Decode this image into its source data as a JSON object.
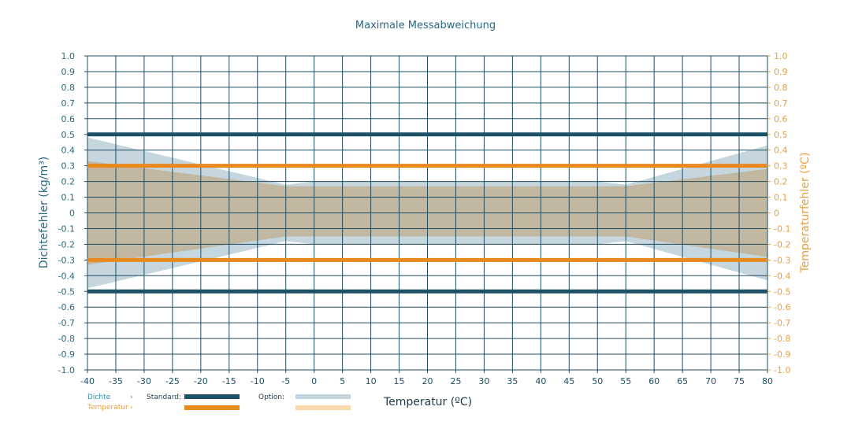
{
  "chart_data": {
    "type": "area",
    "title": "Maximale Messabweichung",
    "xlabel": "Temperatur (ºC)",
    "ylabel_left": "Dichtefehler (kg/m³)",
    "ylabel_right": "Temperaturfehler (ºC)",
    "xlim": [
      -40,
      80
    ],
    "ylim": [
      -1.0,
      1.0
    ],
    "x_ticks": [
      -40,
      -35,
      -30,
      -25,
      -20,
      -15,
      -10,
      -5,
      0,
      5,
      10,
      15,
      20,
      25,
      30,
      35,
      40,
      45,
      50,
      55,
      60,
      65,
      70,
      75,
      80
    ],
    "y_ticks": [
      1.0,
      0.9,
      0.8,
      0.7,
      0.6,
      0.5,
      0.4,
      0.3,
      0.2,
      0.1,
      0,
      -0.1,
      -0.2,
      -0.3,
      -0.4,
      -0.5,
      -0.6,
      -0.7,
      -0.8,
      -0.9,
      -1.0
    ],
    "y_tick_labels": [
      "1.0",
      "0.9",
      "0.8",
      "0.7",
      "0.6",
      "0.5",
      "0.4",
      "0.3",
      "0.2",
      "0.1",
      "0",
      "-0.1",
      "-0.2",
      "-0.3",
      "-0.4",
      "-0.5",
      "-0.6",
      "-0.7",
      "-0.8",
      "-0.9",
      "-1.0"
    ],
    "grid": true,
    "series": [
      {
        "name": "Dichte Standard",
        "kind": "line",
        "color": "#1d5166",
        "values": [
          0.5,
          -0.5
        ]
      },
      {
        "name": "Temperatur Standard",
        "kind": "line",
        "color": "#e8891d",
        "values": [
          0.3,
          -0.3
        ]
      },
      {
        "name": "Dichte Option",
        "kind": "band",
        "color": "#c5d6de",
        "x": [
          -40,
          -5,
          0,
          50,
          55,
          80
        ],
        "upper": [
          0.48,
          0.18,
          0.2,
          0.2,
          0.18,
          0.43
        ],
        "lower": [
          -0.48,
          -0.18,
          -0.2,
          -0.2,
          -0.18,
          -0.43
        ]
      },
      {
        "name": "Temperatur Option",
        "kind": "band",
        "color": "#c2b7a0",
        "x": [
          -40,
          -5,
          55,
          80
        ],
        "upper": [
          0.33,
          0.17,
          0.17,
          0.28
        ],
        "lower": [
          -0.33,
          -0.15,
          -0.15,
          -0.28
        ]
      }
    ]
  },
  "legend": {
    "dichte_label": "Dichte",
    "temperatur_label": "Temperatur",
    "arrow": "›",
    "standard_label": "Standard:",
    "option_label": "Option:",
    "colors": {
      "dichte_standard": "#1d5166",
      "temperatur_standard": "#e8891d",
      "dichte_option": "#c5d6de",
      "temperatur_option": "#fbd9ad"
    }
  }
}
